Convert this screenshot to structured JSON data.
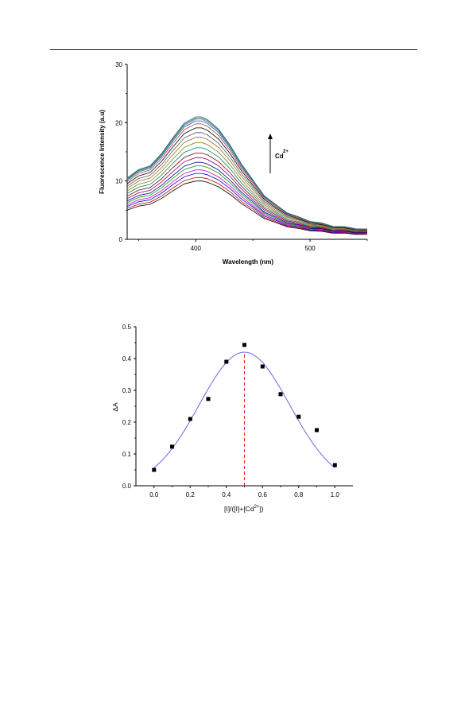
{
  "chart_data": [
    {
      "type": "line",
      "xlabel": "Wavelength (nm)",
      "ylabel": "Fluorescence Intensity (a.u)",
      "xlim": [
        340,
        550
      ],
      "ylim": [
        0,
        30
      ],
      "x_ticks": [
        400,
        500
      ],
      "y_ticks": [
        0,
        10,
        20,
        30
      ],
      "annotation": {
        "text": "Cd",
        "superscript": "2+",
        "arrow": "up"
      },
      "grid": false,
      "legend": "none",
      "curve_shape": {
        "x": [
          340,
          350,
          360,
          370,
          380,
          390,
          400,
          405,
          410,
          420,
          430,
          440,
          450,
          460,
          470,
          480,
          490,
          500,
          510,
          520,
          530,
          540,
          550
        ],
        "shape": [
          0.5,
          0.57,
          0.6,
          0.7,
          0.83,
          0.95,
          1.0,
          1.0,
          0.98,
          0.9,
          0.77,
          0.62,
          0.48,
          0.36,
          0.28,
          0.22,
          0.18,
          0.15,
          0.13,
          0.11,
          0.1,
          0.09,
          0.08
        ]
      },
      "series": [
        {
          "peak": 10.0,
          "color": "#000000"
        },
        {
          "peak": 10.6,
          "color": "#cc0000"
        },
        {
          "peak": 11.3,
          "color": "#0000cc"
        },
        {
          "peak": 11.9,
          "color": "#cc00cc"
        },
        {
          "peak": 12.6,
          "color": "#009900"
        },
        {
          "peak": 13.2,
          "color": "#000080"
        },
        {
          "peak": 14.0,
          "color": "#800080"
        },
        {
          "peak": 14.8,
          "color": "#800000"
        },
        {
          "peak": 15.7,
          "color": "#008080"
        },
        {
          "peak": 16.6,
          "color": "#808000"
        },
        {
          "peak": 17.5,
          "color": "#996633"
        },
        {
          "peak": 18.3,
          "color": "#555555"
        },
        {
          "peak": 19.1,
          "color": "#000000"
        },
        {
          "peak": 19.8,
          "color": "#cc3333"
        },
        {
          "peak": 20.3,
          "color": "#0066cc"
        },
        {
          "peak": 20.6,
          "color": "#339966"
        },
        {
          "peak": 20.8,
          "color": "#666699"
        },
        {
          "peak": 21.0,
          "color": "#336666"
        }
      ]
    },
    {
      "type": "scatter",
      "xlabel": "[I]/([I]+[Cd",
      "xlabel_sup": "2+",
      "xlabel_end": "])",
      "ylabel": "ΔA",
      "xlim": [
        -0.1,
        1.1
      ],
      "ylim": [
        0.0,
        0.5
      ],
      "x_ticks": [
        "0.0",
        "0.2",
        "0.4",
        "0.6",
        "0.8",
        "1.0"
      ],
      "y_ticks": [
        "0.0",
        "0.1",
        "0.2",
        "0.3",
        "0.4",
        "0.5"
      ],
      "x": [
        0.0,
        0.1,
        0.2,
        0.3,
        0.4,
        0.5,
        0.6,
        0.7,
        0.8,
        0.9,
        1.0
      ],
      "y": [
        0.05,
        0.123,
        0.21,
        0.273,
        0.39,
        0.443,
        0.375,
        0.288,
        0.217,
        0.175,
        0.065
      ],
      "fit": {
        "type": "gaussian",
        "center": 0.5,
        "amplitude": 0.42,
        "sigma": 0.25,
        "color": "#6666ee"
      },
      "marker_line": {
        "x": 0.5,
        "color": "#dd2222",
        "style": "dashed"
      },
      "grid": false,
      "legend": "none"
    }
  ]
}
